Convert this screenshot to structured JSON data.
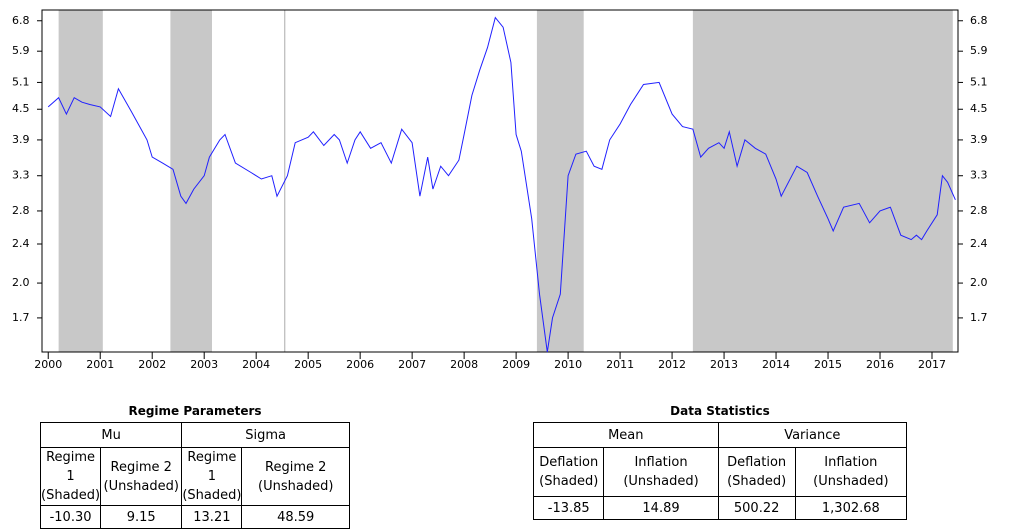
{
  "chart_data": {
    "type": "line",
    "yscale": "log",
    "xlim": [
      1999.88,
      2017.5
    ],
    "ylim": [
      1.45,
      7.15
    ],
    "xticks": [
      2000,
      2001,
      2002,
      2003,
      2004,
      2005,
      2006,
      2007,
      2008,
      2009,
      2010,
      2011,
      2012,
      2013,
      2014,
      2015,
      2016,
      2017
    ],
    "yticks": [
      {
        "value": 1.7,
        "label": "1.7"
      },
      {
        "value": 2,
        "label": "2.0"
      },
      2.4,
      2.8,
      3.3,
      3.9,
      4.5,
      5.1,
      5.9,
      6.8
    ],
    "shade_color": "#c8c8c8",
    "shaded_periods": [
      [
        2000.2,
        2001.05
      ],
      [
        2002.35,
        2003.15
      ],
      [
        2009.4,
        2010.3
      ],
      [
        2012.4,
        2017.4
      ]
    ],
    "vline": 2004.55,
    "x": [
      2000.0,
      2000.2,
      2000.35,
      2000.5,
      2000.65,
      2000.8,
      2001.0,
      2001.2,
      2001.35,
      2001.6,
      2001.9,
      2002.0,
      2002.2,
      2002.4,
      2002.55,
      2002.65,
      2002.8,
      2003.0,
      2003.1,
      2003.3,
      2003.4,
      2003.6,
      2003.9,
      2004.1,
      2004.3,
      2004.4,
      2004.6,
      2004.75,
      2005.0,
      2005.1,
      2005.3,
      2005.5,
      2005.6,
      2005.75,
      2005.9,
      2006.0,
      2006.2,
      2006.4,
      2006.6,
      2006.8,
      2007.0,
      2007.15,
      2007.3,
      2007.4,
      2007.55,
      2007.7,
      2007.9,
      2008.0,
      2008.15,
      2008.3,
      2008.45,
      2008.6,
      2008.75,
      2008.9,
      2009.0,
      2009.1,
      2009.3,
      2009.45,
      2009.6,
      2009.7,
      2009.85,
      2010.0,
      2010.15,
      2010.35,
      2010.5,
      2010.65,
      2010.8,
      2011.0,
      2011.2,
      2011.45,
      2011.75,
      2012.0,
      2012.2,
      2012.4,
      2012.55,
      2012.7,
      2012.9,
      2013.0,
      2013.1,
      2013.25,
      2013.4,
      2013.6,
      2013.8,
      2014.0,
      2014.1,
      2014.4,
      2014.6,
      2014.8,
      2015.0,
      2015.1,
      2015.3,
      2015.6,
      2015.8,
      2016.0,
      2016.2,
      2016.4,
      2016.6,
      2016.7,
      2016.8,
      2016.9,
      2017.1,
      2017.2,
      2017.3,
      2017.45
    ],
    "series": [
      {
        "color": "#2020ff",
        "values": [
          4.55,
          4.75,
          4.4,
          4.75,
          4.65,
          4.6,
          4.55,
          4.35,
          4.95,
          4.45,
          3.9,
          3.6,
          3.5,
          3.4,
          3.0,
          2.9,
          3.1,
          3.3,
          3.6,
          3.9,
          4.0,
          3.5,
          3.35,
          3.25,
          3.3,
          3.0,
          3.3,
          3.85,
          3.95,
          4.05,
          3.8,
          4.0,
          3.9,
          3.5,
          3.9,
          4.05,
          3.75,
          3.85,
          3.5,
          4.1,
          3.85,
          3.0,
          3.6,
          3.1,
          3.45,
          3.3,
          3.55,
          4.0,
          4.8,
          5.4,
          6.0,
          6.9,
          6.6,
          5.6,
          4.0,
          3.7,
          2.7,
          1.9,
          1.45,
          1.7,
          1.9,
          3.3,
          3.65,
          3.7,
          3.45,
          3.4,
          3.9,
          4.2,
          4.6,
          5.05,
          5.1,
          4.4,
          4.15,
          4.1,
          3.6,
          3.75,
          3.85,
          3.75,
          4.05,
          3.45,
          3.9,
          3.75,
          3.65,
          3.25,
          3.0,
          3.45,
          3.35,
          3.0,
          2.7,
          2.55,
          2.85,
          2.9,
          2.65,
          2.8,
          2.85,
          2.5,
          2.45,
          2.5,
          2.45,
          2.55,
          2.75,
          3.3,
          3.2,
          2.95
        ]
      }
    ]
  },
  "tables": [
    {
      "title": "Regime Parameters",
      "groups": [
        "Mu",
        "Sigma"
      ],
      "subheaders": [
        [
          "Regime 1",
          "(Shaded)"
        ],
        [
          "Regime 2",
          "(Unshaded)"
        ],
        [
          "Regime 1",
          "(Shaded)"
        ],
        [
          "Regime 2",
          "(Unshaded)"
        ]
      ],
      "values": [
        "-10.30",
        "9.15",
        "13.21",
        "48.59"
      ]
    },
    {
      "title": "Data Statistics",
      "groups": [
        "Mean",
        "Variance"
      ],
      "subheaders": [
        [
          "Deflation",
          "(Shaded)"
        ],
        [
          "Inflation",
          "(Unshaded)"
        ],
        [
          "Deflation",
          "(Shaded)"
        ],
        [
          "Inflation",
          "(Unshaded)"
        ]
      ],
      "values": [
        "-13.85",
        "14.89",
        "500.22",
        "1,302.68"
      ]
    }
  ]
}
